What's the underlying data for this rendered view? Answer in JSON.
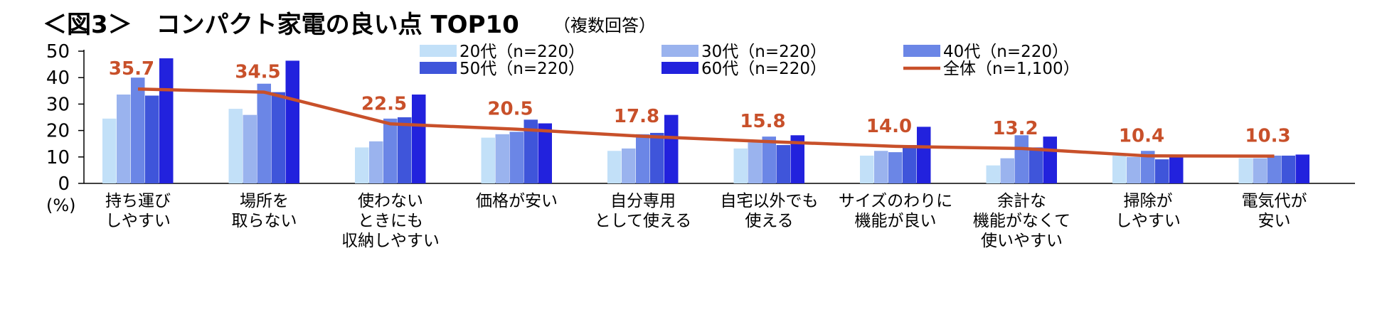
{
  "chart_data": {
    "type": "bar",
    "title": "＜図3＞　コンパクト家電の良い点 TOP10",
    "subtitle": "（複数回答）",
    "ylabel": "(%)",
    "ylim": [
      0,
      50
    ],
    "yticks": [
      "0",
      "10",
      "20",
      "30",
      "40",
      "50"
    ],
    "categories": [
      [
        "持ち運び",
        "しやすい"
      ],
      [
        "場所を",
        "取らない"
      ],
      [
        "使わない",
        "ときにも",
        "収納しやすい"
      ],
      [
        "価格が安い"
      ],
      [
        "自分専用",
        "として使える"
      ],
      [
        "自宅以外でも",
        "使える"
      ],
      [
        "サイズのわりに",
        "機能が良い"
      ],
      [
        "余計な",
        "機能がなくて",
        "使いやすい"
      ],
      [
        "掃除が",
        "しやすい"
      ],
      [
        "電気代が",
        "安い"
      ]
    ],
    "series": [
      {
        "name": "20代（n=220）",
        "color": "#c2e0f8",
        "values": [
          24.5,
          28.2,
          13.6,
          17.3,
          12.3,
          13.2,
          10.5,
          6.8,
          10.5,
          9.5
        ]
      },
      {
        "name": "30代（n=220）",
        "color": "#9ab3ee",
        "values": [
          33.6,
          25.9,
          15.9,
          18.6,
          13.2,
          15.5,
          12.3,
          9.5,
          10.0,
          9.5
        ]
      },
      {
        "name": "40代（n=220）",
        "color": "#6b86e6",
        "values": [
          40.0,
          37.7,
          24.5,
          19.5,
          18.6,
          17.7,
          11.8,
          18.2,
          12.3,
          10.5
        ]
      },
      {
        "name": "50代（n=220）",
        "color": "#3f55da",
        "values": [
          33.2,
          34.5,
          25.0,
          24.1,
          19.1,
          14.5,
          14.5,
          13.6,
          9.1,
          10.5
        ]
      },
      {
        "name": "60代（n=220）",
        "color": "#2222dd",
        "values": [
          47.3,
          46.4,
          33.6,
          22.7,
          25.9,
          18.2,
          21.4,
          17.7,
          10.0,
          10.9
        ]
      }
    ],
    "total": {
      "name": "全体（n=1,100）",
      "color": "#c8502a",
      "values": [
        35.7,
        34.5,
        22.5,
        20.5,
        17.8,
        15.8,
        14.0,
        13.2,
        10.4,
        10.3
      ],
      "labels": [
        "35.7",
        "34.5",
        "22.5",
        "20.5",
        "17.8",
        "15.8",
        "14.0",
        "13.2",
        "10.4",
        "10.3"
      ]
    },
    "legend_position": "top-right",
    "grid": false
  }
}
